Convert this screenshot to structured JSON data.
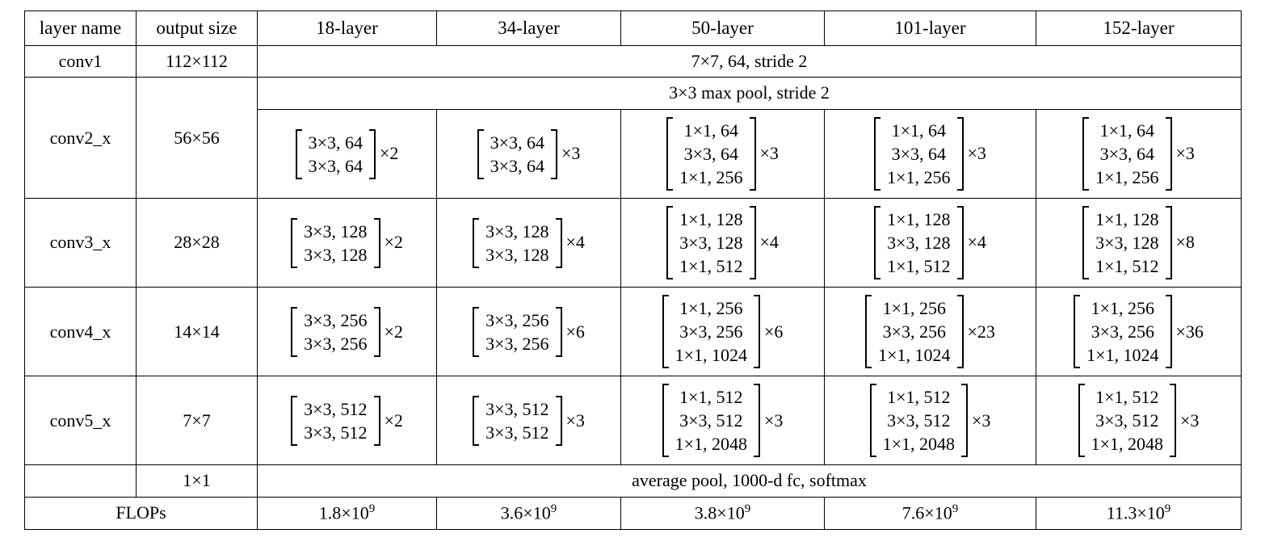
{
  "page": {
    "background_color": "#ffffff",
    "text_color": "#000000",
    "border_color": "#000000"
  },
  "table": {
    "header": {
      "layer_name": "layer name",
      "output_size": "output size",
      "col18": "18-layer",
      "col34": "34-layer",
      "col50": "50-layer",
      "col101": "101-layer",
      "col152": "152-layer"
    },
    "conv1": {
      "name": "conv1",
      "output": "112×112",
      "spec": "7×7, 64, stride 2"
    },
    "conv2": {
      "name": "conv2_x",
      "output": "56×56",
      "pool": "3×3 max pool, stride 2",
      "blocks": [
        {
          "lines": [
            "3×3, 64",
            "3×3, 64"
          ],
          "mult": "×2"
        },
        {
          "lines": [
            "3×3, 64",
            "3×3, 64"
          ],
          "mult": "×3"
        },
        {
          "lines": [
            "1×1, 64",
            "3×3, 64",
            "1×1, 256"
          ],
          "mult": "×3"
        },
        {
          "lines": [
            "1×1, 64",
            "3×3, 64",
            "1×1, 256"
          ],
          "mult": "×3"
        },
        {
          "lines": [
            "1×1, 64",
            "3×3, 64",
            "1×1, 256"
          ],
          "mult": "×3"
        }
      ]
    },
    "conv3": {
      "name": "conv3_x",
      "output": "28×28",
      "blocks": [
        {
          "lines": [
            "3×3, 128",
            "3×3, 128"
          ],
          "mult": "×2"
        },
        {
          "lines": [
            "3×3, 128",
            "3×3, 128"
          ],
          "mult": "×4"
        },
        {
          "lines": [
            "1×1, 128",
            "3×3, 128",
            "1×1, 512"
          ],
          "mult": "×4"
        },
        {
          "lines": [
            "1×1, 128",
            "3×3, 128",
            "1×1, 512"
          ],
          "mult": "×4"
        },
        {
          "lines": [
            "1×1, 128",
            "3×3, 128",
            "1×1, 512"
          ],
          "mult": "×8"
        }
      ]
    },
    "conv4": {
      "name": "conv4_x",
      "output": "14×14",
      "blocks": [
        {
          "lines": [
            "3×3, 256",
            "3×3, 256"
          ],
          "mult": "×2"
        },
        {
          "lines": [
            "3×3, 256",
            "3×3, 256"
          ],
          "mult": "×6"
        },
        {
          "lines": [
            "1×1, 256",
            "3×3, 256",
            "1×1, 1024"
          ],
          "mult": "×6"
        },
        {
          "lines": [
            "1×1, 256",
            "3×3, 256",
            "1×1, 1024"
          ],
          "mult": "×23"
        },
        {
          "lines": [
            "1×1, 256",
            "3×3, 256",
            "1×1, 1024"
          ],
          "mult": "×36"
        }
      ]
    },
    "conv5": {
      "name": "conv5_x",
      "output": "7×7",
      "blocks": [
        {
          "lines": [
            "3×3, 512",
            "3×3, 512"
          ],
          "mult": "×2"
        },
        {
          "lines": [
            "3×3, 512",
            "3×3, 512"
          ],
          "mult": "×3"
        },
        {
          "lines": [
            "1×1, 512",
            "3×3, 512",
            "1×1, 2048"
          ],
          "mult": "×3"
        },
        {
          "lines": [
            "1×1, 512",
            "3×3, 512",
            "1×1, 2048"
          ],
          "mult": "×3"
        },
        {
          "lines": [
            "1×1, 512",
            "3×3, 512",
            "1×1, 2048"
          ],
          "mult": "×3"
        }
      ]
    },
    "pool_row": {
      "output": "1×1",
      "spec": "average pool, 1000-d fc, softmax"
    },
    "flops": {
      "label": "FLOPs",
      "values": [
        {
          "base": "1.8×10",
          "exp": "9"
        },
        {
          "base": "3.6×10",
          "exp": "9"
        },
        {
          "base": "3.8×10",
          "exp": "9"
        },
        {
          "base": "7.6×10",
          "exp": "9"
        },
        {
          "base": "11.3×10",
          "exp": "9"
        }
      ]
    }
  }
}
